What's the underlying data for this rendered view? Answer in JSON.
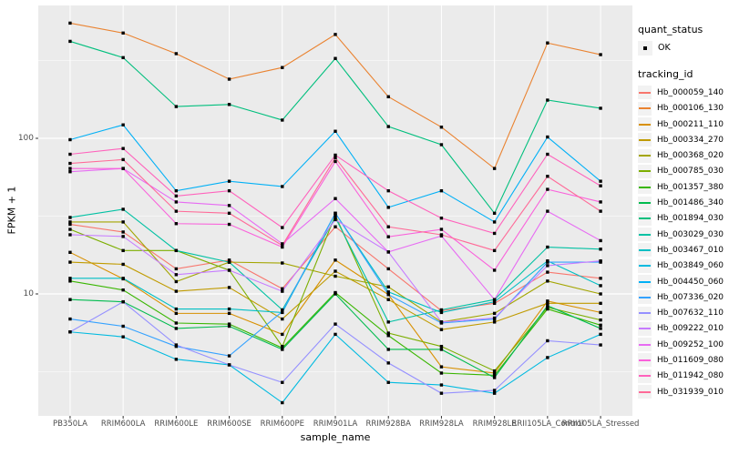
{
  "chart_data": {
    "type": "line",
    "title": "",
    "xlabel": "sample_name",
    "ylabel": "FPKM + 1",
    "y_scale": "log10",
    "y_axis_range": [
      1.7,
      760
    ],
    "y_ticks": [
      100,
      10
    ],
    "y_tick_labels": [
      "100",
      "10"
    ],
    "y_minor_gridlines": [
      316.23,
      31.62,
      3.162
    ],
    "grid": "on",
    "legend_position": "right",
    "panel_bg": "#EBEBEB",
    "grid_color": "#FFFFFF",
    "point_color": "#000000",
    "point_shape": "square",
    "categories": [
      "PB350LA",
      "RRIM600LA",
      "RRIM600LE",
      "RRIM600SE",
      "RRIM600PE",
      "RRIM901LA",
      "RRIM928BA",
      "RRIM928LA",
      "RRIM928LE",
      "RRII105LA_Control",
      "RRII105LA_Stressed"
    ],
    "series": [
      {
        "name": "Hb_000059_140",
        "color": "#F8766D",
        "values": [
          28,
          25,
          14.5,
          16.5,
          10.8,
          27,
          14.5,
          7.8,
          8.7,
          13.8,
          12.6
        ]
      },
      {
        "name": "Hb_000106_130",
        "color": "#EA8331",
        "values": [
          550,
          475,
          350,
          240,
          285,
          465,
          185,
          118,
          64,
          410,
          345
        ]
      },
      {
        "name": "Hb_000211_110",
        "color": "#D89000",
        "values": [
          18.5,
          12.5,
          7.5,
          7.5,
          5.5,
          16.5,
          9.9,
          3.4,
          3.1,
          9.0,
          7.6
        ]
      },
      {
        "name": "Hb_000334_270",
        "color": "#C09B00",
        "values": [
          16,
          15.5,
          10.4,
          11,
          6.9,
          14,
          9.2,
          5.9,
          6.6,
          8.7,
          8.7
        ]
      },
      {
        "name": "Hb_000368_020",
        "color": "#A3A500",
        "values": [
          29,
          29,
          12,
          16,
          15.8,
          13,
          11.1,
          6.6,
          7.5,
          12.1,
          10
        ]
      },
      {
        "name": "Hb_000785_030",
        "color": "#7CAE00",
        "values": [
          26,
          19,
          19,
          14.2,
          4.6,
          32,
          5.6,
          4.6,
          3.2,
          8.2,
          6.8
        ]
      },
      {
        "name": "Hb_001357_380",
        "color": "#39B600",
        "values": [
          12.1,
          10.6,
          6.5,
          6.4,
          4.5,
          10.2,
          5.4,
          3.1,
          3.0,
          8.0,
          6.3
        ]
      },
      {
        "name": "Hb_001486_340",
        "color": "#00BB4E",
        "values": [
          9.2,
          8.9,
          6.0,
          6.2,
          4.4,
          10.0,
          4.4,
          4.4,
          2.9,
          8.4,
          6.0
        ]
      },
      {
        "name": "Hb_001894_030",
        "color": "#00BF7D",
        "values": [
          420,
          330,
          160,
          165,
          131,
          326,
          119,
          91,
          33,
          176,
          156
        ]
      },
      {
        "name": "Hb_003029_030",
        "color": "#00C1A3",
        "values": [
          31,
          35,
          19,
          16,
          7.9,
          31,
          6.6,
          7.9,
          9.2,
          20,
          19.4
        ]
      },
      {
        "name": "Hb_003467_010",
        "color": "#00BFC4",
        "values": [
          12.6,
          12.6,
          8.0,
          8.0,
          7.6,
          33,
          10.3,
          7.6,
          8.9,
          16.3,
          11.3
        ]
      },
      {
        "name": "Hb_003849_060",
        "color": "#00BAE0",
        "values": [
          5.7,
          5.3,
          3.8,
          3.5,
          2.0,
          5.5,
          2.7,
          2.6,
          2.3,
          3.9,
          5.5
        ]
      },
      {
        "name": "Hb_004450_060",
        "color": "#00B0F6",
        "values": [
          98,
          122,
          46,
          53,
          49,
          111,
          36,
          46,
          29,
          102,
          53
        ]
      },
      {
        "name": "Hb_007336_020",
        "color": "#35A2FF",
        "values": [
          6.9,
          6.2,
          4.6,
          4.0,
          7.7,
          33,
          9.9,
          6.5,
          6.9,
          16,
          16
        ]
      },
      {
        "name": "Hb_007632_110",
        "color": "#9590FF",
        "values": [
          5.7,
          8.9,
          4.7,
          3.5,
          2.7,
          6.4,
          3.6,
          2.3,
          2.4,
          5.0,
          4.7
        ]
      },
      {
        "name": "Hb_009222_010",
        "color": "#C77CFF",
        "values": [
          24,
          23.4,
          13.3,
          14.2,
          10.4,
          30,
          18.6,
          6.6,
          7.0,
          15.2,
          16.3
        ]
      },
      {
        "name": "Hb_009252_100",
        "color": "#E76BF3",
        "values": [
          61,
          64,
          39,
          37,
          21,
          41,
          18.6,
          23.6,
          9.2,
          34,
          22
        ]
      },
      {
        "name": "Hb_011609_080",
        "color": "#FA62DB",
        "values": [
          64,
          64,
          28.3,
          28,
          20,
          71,
          23.3,
          26,
          14.2,
          47,
          39
        ]
      },
      {
        "name": "Hb_011942_080",
        "color": "#FF62BC",
        "values": [
          79,
          86,
          42.6,
          46,
          26.7,
          78,
          46,
          30.7,
          24.5,
          79,
          49.5
        ]
      },
      {
        "name": "Hb_031939_010",
        "color": "#FF6A98",
        "values": [
          69,
          73,
          34,
          33,
          20.5,
          75,
          27,
          24,
          19,
          57,
          34
        ]
      }
    ],
    "legend": {
      "quant_status_title": "quant_status",
      "quant_status_ok_label": "OK",
      "tracking_id_title": "tracking_id"
    }
  }
}
